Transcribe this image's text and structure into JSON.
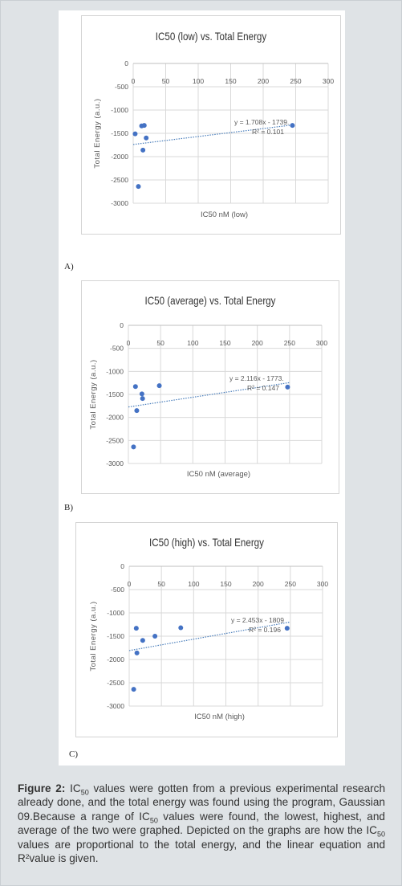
{
  "figure": {
    "charts": [
      {
        "panel_label": "A)",
        "equation": "y = 1.708x - 1739.",
        "r2": "R² = 0.101"
      },
      {
        "panel_label": "B)",
        "equation": "y = 2.116x - 1773.",
        "r2": "R² = 0.147"
      },
      {
        "panel_label": "C)",
        "equation": "y = 2.453x - 1809",
        "r2": "R² = 0.196"
      }
    ]
  },
  "caption": {
    "label": "Figure 2:",
    "p1": " IC",
    "sub1": "50",
    "p2": " values were gotten from a previous experimental research already done, and the total energy was found using the program, Gaussian 09.Because a range of IC",
    "sub2": "50",
    "p3": " values were found, the lowest, highest, and average of the two were graphed. Depicted on the graphs are how the IC",
    "sub3": "50",
    "p4": " values are proportional to the total energy, and the linear equation and R²value is given."
  },
  "chart_data": [
    {
      "type": "scatter",
      "title": "IC50 (low) vs. Total Energy",
      "xlabel": "IC50 nM (low)",
      "ylabel": "Total Energy (a.u.)",
      "xlim": [
        0,
        300
      ],
      "ylim": [
        -3000,
        0
      ],
      "xticks": [
        "0",
        "50",
        "100",
        "150",
        "200",
        "250",
        "300"
      ],
      "yticks": [
        "0",
        "-500",
        "-1000",
        "-1500",
        "-2000",
        "-2500",
        "-3000"
      ],
      "x": [
        3,
        8,
        13,
        17,
        15,
        20,
        245
      ],
      "y": [
        -1510,
        -2640,
        -1340,
        -1330,
        -1860,
        -1600,
        -1330
      ],
      "trendline": {
        "slope": 1.708,
        "intercept": -1739
      }
    },
    {
      "type": "scatter",
      "title": "IC50 (average) vs. Total Energy",
      "xlabel": "IC50 nM (average)",
      "ylabel": "Total Energy (a.u.)",
      "xlim": [
        0,
        300
      ],
      "ylim": [
        -3000,
        0
      ],
      "xticks": [
        "0",
        "50",
        "100",
        "150",
        "200",
        "250",
        "300"
      ],
      "yticks": [
        "0",
        "-500",
        "-1000",
        "-1500",
        "-2000",
        "-2500",
        "-3000"
      ],
      "x": [
        8,
        11,
        13,
        21,
        22,
        48,
        247
      ],
      "y": [
        -2640,
        -1330,
        -1850,
        -1490,
        -1590,
        -1310,
        -1340
      ],
      "trendline": {
        "slope": 2.116,
        "intercept": -1773
      }
    },
    {
      "type": "scatter",
      "title": "IC50 (high) vs. Total Energy",
      "xlabel": "IC50 nM (high)",
      "ylabel": "Total Energy (a.u.)",
      "xlim": [
        0,
        300
      ],
      "ylim": [
        -3000,
        0
      ],
      "xticks": [
        "0",
        "50",
        "100",
        "150",
        "200",
        "250",
        "300"
      ],
      "yticks": [
        "0",
        "-500",
        "-1000",
        "-1500",
        "-2000",
        "-2500",
        "-3000"
      ],
      "x": [
        7,
        11,
        12,
        21,
        40,
        80,
        245
      ],
      "y": [
        -2640,
        -1330,
        -1860,
        -1590,
        -1500,
        -1320,
        -1330
      ],
      "trendline": {
        "slope": 2.453,
        "intercept": -1809
      }
    }
  ]
}
